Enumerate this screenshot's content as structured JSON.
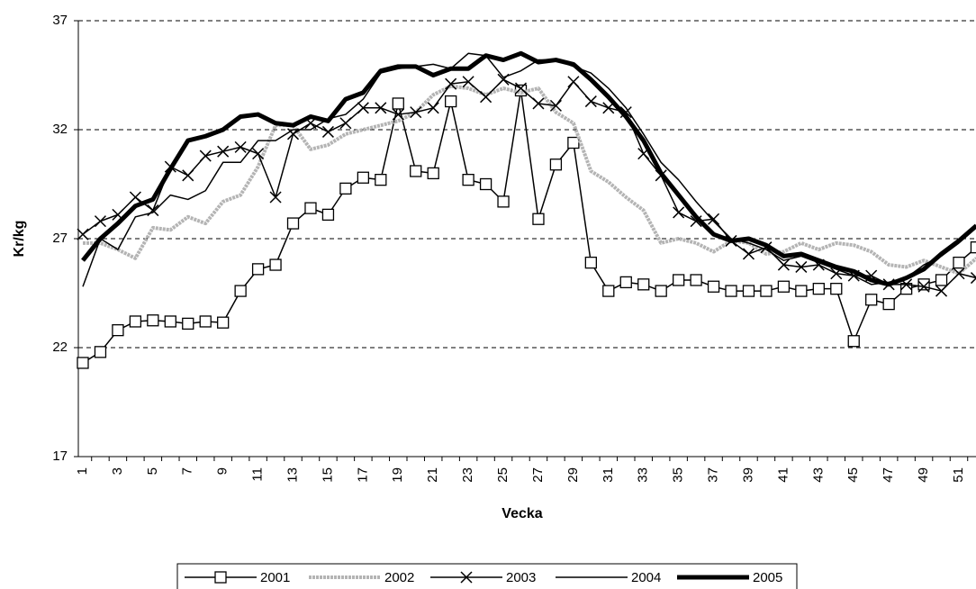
{
  "chart_data": {
    "type": "line",
    "ylabel": "Kr/kg",
    "xlabel": "Vecka",
    "categories": [
      1,
      null,
      3,
      null,
      5,
      null,
      7,
      null,
      9,
      null,
      11,
      null,
      13,
      null,
      15,
      null,
      17,
      null,
      19,
      null,
      21,
      null,
      23,
      null,
      25,
      null,
      27,
      null,
      29,
      null,
      31,
      null,
      33,
      null,
      35,
      null,
      37,
      null,
      39,
      null,
      41,
      null,
      43,
      null,
      45,
      null,
      47,
      null,
      49,
      null,
      51,
      null
    ],
    "ylim": [
      17,
      37
    ],
    "yticks": [
      17,
      22,
      27,
      32,
      37
    ],
    "grid": true,
    "legend": "bottom",
    "series": [
      {
        "name": "2001",
        "color": "#000000",
        "width": 1.5,
        "marker": "square",
        "values": [
          21.3,
          21.8,
          22.8,
          23.2,
          23.25,
          23.2,
          23.1,
          23.2,
          23.15,
          24.6,
          25.6,
          25.8,
          27.7,
          28.4,
          28.1,
          29.3,
          29.8,
          29.7,
          33.2,
          30.1,
          30.0,
          33.3,
          29.7,
          29.5,
          28.7,
          33.8,
          27.9,
          30.4,
          31.4,
          25.9,
          24.6,
          25.0,
          24.9,
          24.6,
          25.1,
          25.1,
          24.8,
          24.6,
          24.6,
          24.6,
          24.8,
          24.6,
          24.7,
          24.7,
          22.3,
          24.2,
          24.0,
          24.7,
          24.9,
          25.1,
          25.9,
          26.6
        ]
      },
      {
        "name": "2002",
        "color": "#b4b4b4",
        "width": 4,
        "marker": "none",
        "values": [
          26.8,
          26.8,
          26.5,
          26.1,
          27.5,
          27.4,
          28.0,
          27.7,
          28.7,
          29.0,
          30.3,
          32.2,
          32.2,
          31.1,
          31.3,
          31.8,
          32.0,
          32.2,
          32.4,
          32.8,
          33.6,
          34.0,
          33.9,
          33.6,
          33.9,
          33.7,
          33.9,
          32.8,
          32.3,
          30.1,
          29.6,
          28.9,
          28.3,
          26.8,
          27.0,
          26.8,
          26.4,
          26.9,
          26.8,
          26.3,
          26.4,
          26.8,
          26.5,
          26.8,
          26.7,
          26.4,
          25.8,
          25.7,
          26.0,
          25.7,
          25.4,
          26.1
        ]
      },
      {
        "name": "2003",
        "color": "#000000",
        "width": 1.5,
        "marker": "x",
        "values": [
          27.2,
          27.8,
          28.1,
          28.9,
          28.3,
          30.3,
          29.9,
          30.8,
          31.0,
          31.2,
          30.9,
          28.9,
          31.8,
          32.3,
          31.9,
          32.3,
          33.0,
          33.0,
          32.7,
          32.8,
          33.0,
          34.1,
          34.2,
          33.5,
          34.3,
          33.9,
          33.2,
          33.1,
          34.2,
          33.3,
          33.0,
          32.8,
          30.9,
          29.9,
          28.2,
          27.8,
          27.9,
          26.9,
          26.3,
          26.6,
          25.8,
          25.7,
          25.8,
          25.4,
          25.3,
          25.3,
          24.9,
          24.9,
          24.8,
          24.6,
          25.4,
          25.2
        ]
      },
      {
        "name": "2004",
        "color": "#000000",
        "width": 1.5,
        "marker": "none",
        "values": [
          24.8,
          27.0,
          26.5,
          28.0,
          28.2,
          29.0,
          28.8,
          29.2,
          30.5,
          30.5,
          31.5,
          31.5,
          32.0,
          32.0,
          32.5,
          32.7,
          33.4,
          34.6,
          34.8,
          34.9,
          35.0,
          34.8,
          35.5,
          35.4,
          34.4,
          34.7,
          35.2,
          35.2,
          34.9,
          34.6,
          33.9,
          33.0,
          31.8,
          30.5,
          29.7,
          28.7,
          27.8,
          27.0,
          26.8,
          26.5,
          26.0,
          26.2,
          25.9,
          25.6,
          25.3,
          24.9,
          25.0,
          25.2,
          25.8,
          26.2,
          26.8,
          27.5
        ]
      },
      {
        "name": "2005",
        "color": "#000000",
        "width": 5,
        "marker": "none",
        "values": [
          26.0,
          27.0,
          27.7,
          28.5,
          28.8,
          30.2,
          31.5,
          31.7,
          32.0,
          32.6,
          32.7,
          32.3,
          32.2,
          32.6,
          32.4,
          33.4,
          33.7,
          34.7,
          34.9,
          34.9,
          34.5,
          34.8,
          34.8,
          35.4,
          35.2,
          35.5,
          35.1,
          35.2,
          35.0,
          34.3,
          33.5,
          32.6,
          31.5,
          30.0,
          29.0,
          28.0,
          27.2,
          26.9,
          27.0,
          26.7,
          26.2,
          26.3,
          26.0,
          25.7,
          25.5,
          25.1,
          24.9,
          25.2,
          25.6,
          26.3,
          26.9,
          27.6
        ]
      }
    ]
  }
}
